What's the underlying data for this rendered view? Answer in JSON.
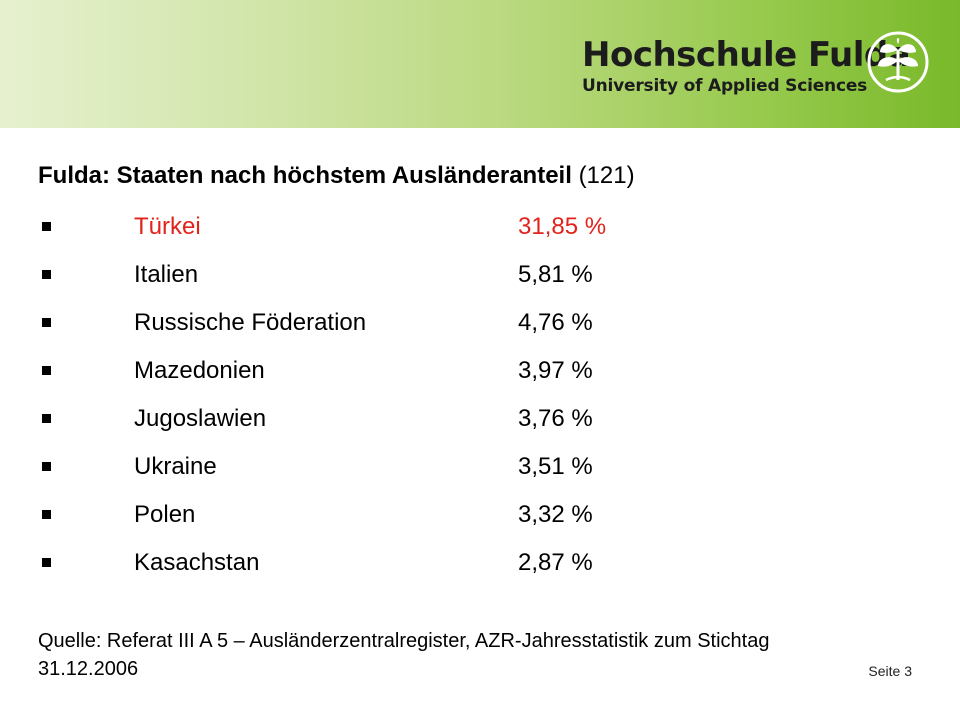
{
  "header": {
    "logo_title": "Hochschule Fulda",
    "logo_subtitle": "University of Applied Sciences",
    "logo_icon": "leaf-tree-icon",
    "colors": {
      "gradient_start": "#e6f0cf",
      "gradient_end": "#79b92a"
    }
  },
  "slide": {
    "title_bold": "Fulda: Staaten nach höchstem Ausländeranteil",
    "title_count": "(121)",
    "highlight_color": "#e3231b",
    "rows": [
      {
        "country": "Türkei",
        "percent": "31,85 %",
        "highlight": true
      },
      {
        "country": "Italien",
        "percent": "5,81 %"
      },
      {
        "country": "Russische Föderation",
        "percent": "4,76 %"
      },
      {
        "country": "Mazedonien",
        "percent": "3,97 %"
      },
      {
        "country": "Jugoslawien",
        "percent": "3,76 %"
      },
      {
        "country": "Ukraine",
        "percent": "3,51 %"
      },
      {
        "country": "Polen",
        "percent": "3,32 %"
      },
      {
        "country": "Kasachstan",
        "percent": "2,87 %"
      }
    ],
    "source_line1": "Quelle: Referat III A 5 – Ausländerzentralregister, AZR-Jahresstatistik zum Stichtag",
    "source_line2": "31.12.2006",
    "page_number": "Seite 3"
  }
}
